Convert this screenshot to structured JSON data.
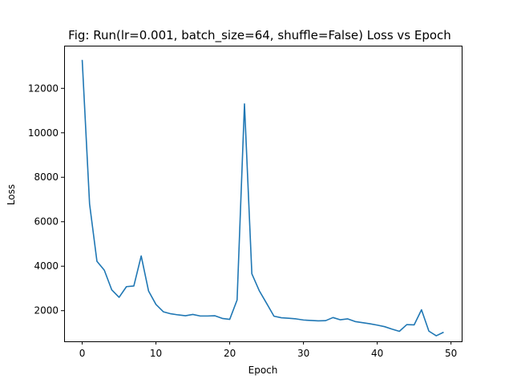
{
  "chart_data": {
    "type": "line",
    "title": "Fig: Run(lr=0.001, batch_size=64, shuffle=False) Loss vs Epoch",
    "xlabel": "Epoch",
    "ylabel": "Loss",
    "xlim": [
      -2.45,
      51.45
    ],
    "ylim": [
      620,
      13920
    ],
    "xticks": [
      0,
      10,
      20,
      30,
      40,
      50
    ],
    "yticks": [
      2000,
      4000,
      6000,
      8000,
      10000,
      12000
    ],
    "grid": false,
    "line_color": "#1f77b4",
    "series": [
      {
        "x": [
          0,
          1,
          2,
          3,
          4,
          5,
          6,
          7,
          8,
          9,
          10,
          11,
          12,
          13,
          14,
          15,
          16,
          17,
          18,
          19,
          20,
          21,
          22,
          23,
          24,
          25,
          26,
          27,
          28,
          29,
          30,
          31,
          32,
          33,
          34,
          35,
          36,
          37,
          38,
          39,
          40,
          41,
          42,
          43,
          44,
          45,
          46,
          47,
          48,
          49
        ],
        "values": [
          13280,
          6800,
          4220,
          3820,
          2940,
          2600,
          3080,
          3110,
          4460,
          2880,
          2280,
          1950,
          1860,
          1810,
          1770,
          1830,
          1760,
          1760,
          1770,
          1650,
          1610,
          2480,
          11300,
          3660,
          2900,
          2330,
          1750,
          1680,
          1660,
          1630,
          1580,
          1560,
          1540,
          1550,
          1690,
          1590,
          1630,
          1510,
          1460,
          1410,
          1350,
          1280,
          1170,
          1070,
          1370,
          1360,
          2040,
          1080,
          870,
          1030
        ]
      }
    ]
  }
}
